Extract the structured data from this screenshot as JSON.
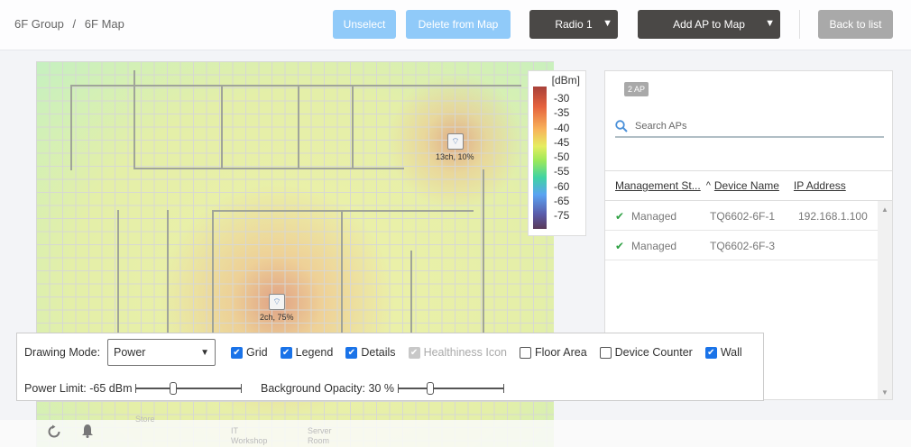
{
  "breadcrumb": {
    "group": "6F Group",
    "separator": "/",
    "map": "6F Map"
  },
  "toolbar": {
    "unselect": "Unselect",
    "delete": "Delete from Map",
    "radio": "Radio 1",
    "add_ap": "Add AP to Map",
    "back": "Back to list"
  },
  "map": {
    "aps": [
      {
        "label": "13ch, 10%",
        "icon": "wifi-icon"
      },
      {
        "label": "2ch, 75%",
        "icon": "wifi-icon"
      }
    ],
    "room_labels": [
      "Store",
      "IT\nWorkshop",
      "Server\nRoom"
    ]
  },
  "legend": {
    "unit": "[dBm]",
    "ticks": [
      "-30",
      "-35",
      "-40",
      "-45",
      "-50",
      "-55",
      "-60",
      "-65",
      "-75"
    ]
  },
  "panel": {
    "count_badge": "2 AP",
    "search_placeholder": "Search APs",
    "columns": [
      "Management St...",
      "Device Name",
      "IP Address"
    ],
    "sort_indicator": "^",
    "rows": [
      {
        "status": "Managed",
        "name": "TQ6602-6F-1",
        "ip": "192.168.1.100"
      },
      {
        "status": "Managed",
        "name": "TQ6602-6F-3",
        "ip": ""
      }
    ]
  },
  "tools": {
    "drawing_mode_label": "Drawing Mode:",
    "drawing_mode": "Power",
    "checkboxes": [
      {
        "label": "Grid",
        "checked": true
      },
      {
        "label": "Legend",
        "checked": true
      },
      {
        "label": "Details",
        "checked": true
      },
      {
        "label": "Healthiness Icon",
        "checked": true,
        "disabled": true
      },
      {
        "label": "Floor Area",
        "checked": false
      },
      {
        "label": "Device Counter",
        "checked": false
      },
      {
        "label": "Wall",
        "checked": true
      }
    ],
    "power_limit_label": "Power Limit: -65 dBm",
    "power_limit_value": -65,
    "opacity_label": "Background Opacity: 30 %",
    "opacity_value": 30
  },
  "colors": {
    "accent": "#1a73e8",
    "light_button": "#90caf9",
    "dark_button": "#4a4846",
    "check": "#2ea043"
  }
}
